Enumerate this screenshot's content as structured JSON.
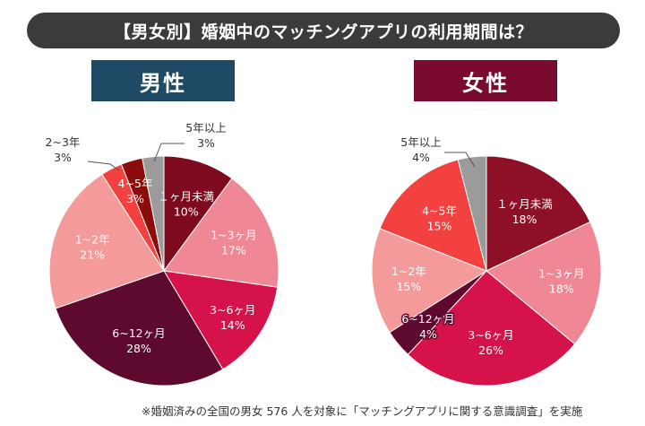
{
  "title": "【男女別】婚姻中のマッチングアプリの利用期間は？",
  "footnote": "※婚姻済みの全国の男女 576 人を対象に「マッチングアプリに関する意識調査」を実施",
  "colors": {
    "title_bg": "#3b3b3b",
    "male_label_bg": "#1f4a66",
    "female_label_bg": "#7a0a2e"
  },
  "chart_data": [
    {
      "type": "pie",
      "title": "男性",
      "unit": "%",
      "slices": [
        {
          "label": "１ヶ月未満",
          "value": 10,
          "color": "#7d0a1f"
        },
        {
          "label": "1~3ヶ月",
          "value": 17,
          "color": "#f08795"
        },
        {
          "label": "3~6ヶ月",
          "value": 14,
          "color": "#d6124a"
        },
        {
          "label": "6~12ヶ月",
          "value": 28,
          "color": "#5e0a2e"
        },
        {
          "label": "1~2年",
          "value": 21,
          "color": "#f49a9a"
        },
        {
          "label": "2~3年",
          "value": 3,
          "color": "#f2413f"
        },
        {
          "label": "4~5年",
          "value": 3,
          "color": "#8c0b0b"
        },
        {
          "label": "5年以上",
          "value": 3,
          "color": "#9b9b9b"
        }
      ]
    },
    {
      "type": "pie",
      "title": "女性",
      "unit": "%",
      "slices": [
        {
          "label": "１ヶ月未満",
          "value": 18,
          "color": "#8e1027"
        },
        {
          "label": "1~3ヶ月",
          "value": 18,
          "color": "#f08795"
        },
        {
          "label": "3~6ヶ月",
          "value": 26,
          "color": "#d6124a"
        },
        {
          "label": "6~12ヶ月",
          "value": 4,
          "color": "#5e0a2e"
        },
        {
          "label": "1~2年",
          "value": 15,
          "color": "#f49a9a"
        },
        {
          "label": "4~5年",
          "value": 15,
          "color": "#f2413f"
        },
        {
          "label": "5年以上",
          "value": 4,
          "color": "#9b9b9b"
        }
      ]
    }
  ]
}
